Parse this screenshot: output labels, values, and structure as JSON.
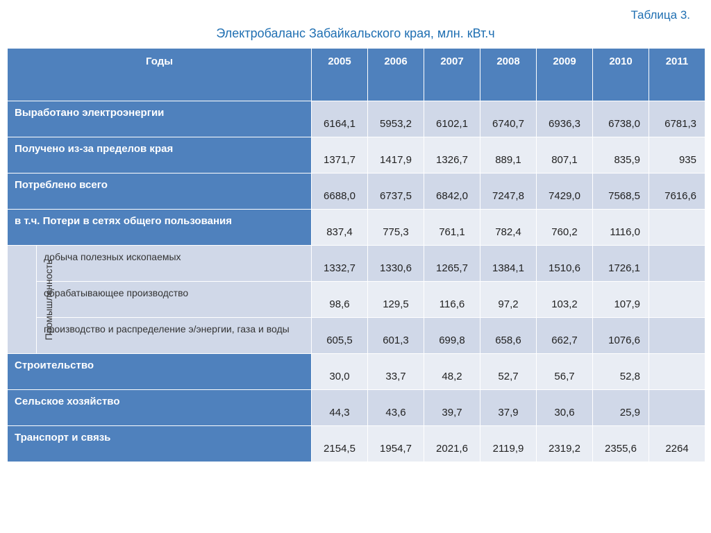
{
  "table_label": "Таблица 3.",
  "title": "Электробаланс Забайкальского края, млн. кВт.ч",
  "header": {
    "years_label": "Годы",
    "years": [
      "2005",
      "2006",
      "2007",
      "2008",
      "2009",
      "2010",
      "2011"
    ]
  },
  "industry_group_label": "Промышленность",
  "rows": [
    {
      "label": "Выработано электроэнергии",
      "vals": [
        "6164,1",
        "5953,2",
        "6102,1",
        "6740,7",
        "6936,3",
        "6738,0",
        "6781,3"
      ],
      "right": [
        0,
        0,
        0,
        0,
        0,
        1,
        1
      ]
    },
    {
      "label": "Получено из-за пределов края",
      "vals": [
        "1371,7",
        "1417,9",
        "1326,7",
        "889,1",
        "807,1",
        "835,9",
        "935"
      ],
      "right": [
        0,
        0,
        0,
        0,
        0,
        1,
        1
      ]
    },
    {
      "label": "Потреблено всего",
      "vals": [
        "6688,0",
        "6737,5",
        "6842,0",
        "7247,8",
        "7429,0",
        "7568,5",
        "7616,6"
      ],
      "right": [
        0,
        0,
        0,
        0,
        0,
        1,
        1
      ]
    },
    {
      "label": "в т.ч. Потери в сетях общего пользования",
      "vals": [
        "837,4",
        "775,3",
        "761,1",
        "782,4",
        "760,2",
        "1116,0",
        ""
      ],
      "right": [
        0,
        0,
        0,
        0,
        0,
        1,
        0
      ]
    },
    {
      "label": "добыча полезных ископаемых",
      "vals": [
        "1332,7",
        "1330,6",
        "1265,7",
        "1384,1",
        "1510,6",
        "1726,1",
        ""
      ],
      "right": [
        0,
        0,
        0,
        0,
        0,
        1,
        0
      ]
    },
    {
      "label": "обрабатывающее производство",
      "vals": [
        "98,6",
        "129,5",
        "116,6",
        "97,2",
        "103,2",
        "107,9",
        ""
      ],
      "right": [
        0,
        0,
        0,
        0,
        0,
        1,
        0
      ]
    },
    {
      "label": "производство и распределение э/энергии, газа и воды",
      "vals": [
        "605,5",
        "601,3",
        "699,8",
        "658,6",
        "662,7",
        "1076,6",
        ""
      ],
      "right": [
        0,
        0,
        0,
        0,
        0,
        1,
        0
      ]
    },
    {
      "label": "Строительство",
      "vals": [
        "30,0",
        "33,7",
        "48,2",
        "52,7",
        "56,7",
        "52,8",
        ""
      ],
      "right": [
        0,
        0,
        0,
        0,
        0,
        1,
        0
      ]
    },
    {
      "label": "Сельское хозяйство",
      "vals": [
        "44,3",
        "43,6",
        "39,7",
        "37,9",
        "30,6",
        "25,9",
        ""
      ],
      "right": [
        0,
        0,
        0,
        0,
        0,
        1,
        0
      ]
    },
    {
      "label": "Транспорт и связь",
      "vals": [
        "2154,5",
        "1954,7",
        "2021,6",
        "2119,9",
        "2319,2",
        "2355,6",
        "2264"
      ],
      "right": [
        0,
        0,
        0,
        0,
        0,
        0,
        0
      ]
    }
  ],
  "styling": {
    "header_bg": "#4f81bd",
    "header_fg": "#ffffff",
    "bandA_bg": "#d0d8e8",
    "bandB_bg": "#e9edf4",
    "title_color": "#1f6fb2",
    "border_color": "#ffffff",
    "title_fontsize": 18,
    "label_fontsize": 15
  }
}
